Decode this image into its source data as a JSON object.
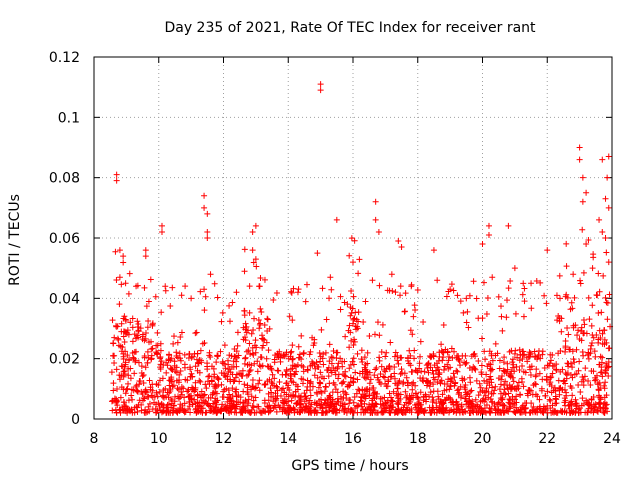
{
  "chart_data": {
    "type": "scatter",
    "title": "Day 235 of 2021, Rate Of TEC Index for receiver rant",
    "xlabel": "GPS time / hours",
    "ylabel": "ROTI / TECUs",
    "xlim": [
      8,
      24
    ],
    "ylim": [
      0,
      0.12
    ],
    "x_ticks": [
      "8",
      "10",
      "12",
      "14",
      "16",
      "18",
      "20",
      "22",
      "24"
    ],
    "y_ticks": [
      "0",
      "0.02",
      "0.04",
      "0.06",
      "0.08",
      "0.1",
      "0.12"
    ],
    "grid": true,
    "marker": "+",
    "series_color": "#ff0000",
    "series": [
      {
        "name": "ROTI",
        "points": [
          [
            8.7,
            0.081
          ],
          [
            8.7,
            0.079
          ],
          [
            15.0,
            0.111
          ],
          [
            15.0,
            0.109
          ],
          [
            15.5,
            0.066
          ],
          [
            11.4,
            0.074
          ],
          [
            11.4,
            0.07
          ],
          [
            11.5,
            0.068
          ],
          [
            11.5,
            0.062
          ],
          [
            11.5,
            0.06
          ],
          [
            16.7,
            0.072
          ],
          [
            16.7,
            0.066
          ],
          [
            16.8,
            0.062
          ],
          [
            23.0,
            0.09
          ],
          [
            23.0,
            0.086
          ],
          [
            23.1,
            0.08
          ],
          [
            23.7,
            0.086
          ],
          [
            23.9,
            0.087
          ],
          [
            23.85,
            0.08
          ],
          [
            23.8,
            0.073
          ],
          [
            23.9,
            0.07
          ],
          [
            23.2,
            0.075
          ],
          [
            23.1,
            0.072
          ],
          [
            23.6,
            0.066
          ],
          [
            23.7,
            0.062
          ],
          [
            10.1,
            0.064
          ],
          [
            10.1,
            0.062
          ],
          [
            13.0,
            0.064
          ],
          [
            12.9,
            0.062
          ],
          [
            20.2,
            0.064
          ],
          [
            20.8,
            0.064
          ],
          [
            8.8,
            0.056
          ],
          [
            8.9,
            0.054
          ],
          [
            9.6,
            0.056
          ],
          [
            9.6,
            0.054
          ],
          [
            12.9,
            0.056
          ],
          [
            13.0,
            0.053
          ],
          [
            14.9,
            0.055
          ],
          [
            17.4,
            0.059
          ],
          [
            17.5,
            0.057
          ],
          [
            18.5,
            0.056
          ],
          [
            20.0,
            0.058
          ],
          [
            20.2,
            0.061
          ],
          [
            22.0,
            0.056
          ],
          [
            23.2,
            0.058
          ],
          [
            23.8,
            0.06
          ],
          [
            8.8,
            0.047
          ],
          [
            9.3,
            0.044
          ],
          [
            10.2,
            0.044
          ],
          [
            11.0,
            0.04
          ],
          [
            11.4,
            0.043
          ],
          [
            11.6,
            0.048
          ],
          [
            12.4,
            0.042
          ],
          [
            13.1,
            0.044
          ],
          [
            14.3,
            0.042
          ],
          [
            15.3,
            0.047
          ],
          [
            16.0,
            0.052
          ],
          [
            16.6,
            0.046
          ],
          [
            17.2,
            0.048
          ],
          [
            17.8,
            0.044
          ],
          [
            18.6,
            0.046
          ],
          [
            19.0,
            0.043
          ],
          [
            19.5,
            0.04
          ],
          [
            20.3,
            0.047
          ],
          [
            21.0,
            0.05
          ],
          [
            21.5,
            0.045
          ],
          [
            22.3,
            0.041
          ],
          [
            22.8,
            0.048
          ],
          [
            23.4,
            0.05
          ],
          [
            23.9,
            0.052
          ]
        ]
      }
    ]
  }
}
